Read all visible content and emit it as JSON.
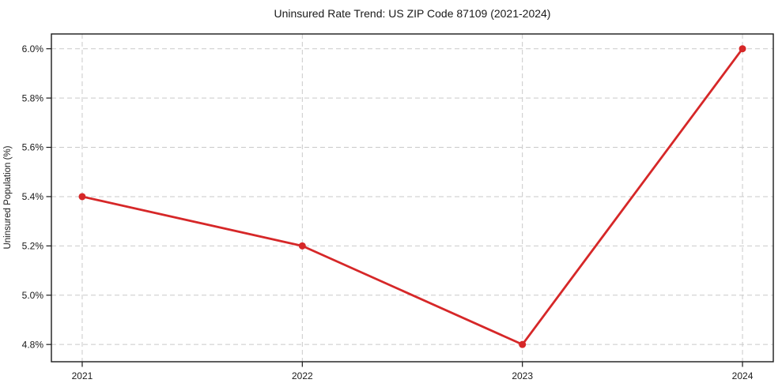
{
  "chart_data": {
    "type": "line",
    "title": "Uninsured Rate Trend: US ZIP Code 87109 (2021-2024)",
    "xlabel": "",
    "ylabel": "Uninsured Population (%)",
    "x": [
      2021,
      2022,
      2023,
      2024
    ],
    "series": [
      {
        "values": [
          5.4,
          5.2,
          4.8,
          6.0
        ],
        "color": "#d62728"
      }
    ],
    "xtick_values": [
      2021,
      2022,
      2023,
      2024
    ],
    "xtick_labels": [
      "2021",
      "2022",
      "2023",
      "2024"
    ],
    "ytick_values": [
      4.8,
      5.0,
      5.2,
      5.4,
      5.6,
      5.8,
      6.0
    ],
    "ytick_labels": [
      "4.8%",
      "5.0%",
      "5.2%",
      "5.4%",
      "5.6%",
      "5.8%",
      "6.0%"
    ],
    "xlim": [
      2020.86,
      2024.14
    ],
    "ylim": [
      4.73,
      6.06
    ],
    "grid": true,
    "grid_style": "dashed",
    "legend": false,
    "colors": {
      "line": "#d62728",
      "marker": "#d62728",
      "grid": "#c9c9c9",
      "frame": "#1a1a1a",
      "text": "#1a1a1a",
      "background": "#ffffff"
    }
  }
}
